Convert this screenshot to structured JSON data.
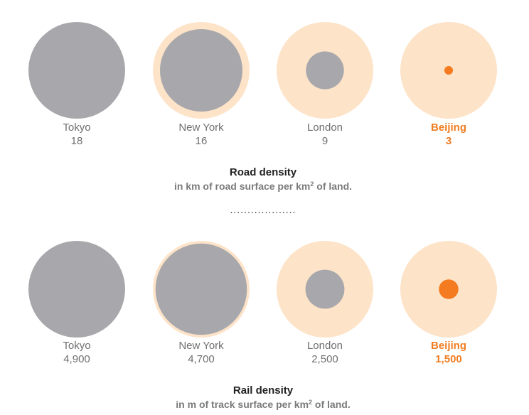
{
  "colors": {
    "outer": "#fde3c8",
    "density": "#a8a8ac",
    "highlight": "#f47b20",
    "label": "#6f6f6f",
    "highlight_label": "#f07d22",
    "title": "#222222",
    "subtitle": "#7a7a7a",
    "divider": "#333333"
  },
  "divider": "...................",
  "chart_data": [
    {
      "type": "proportional-circle",
      "title": "Road density",
      "subtitle_pre": "in km of road surface per km",
      "subtitle_sup": "2",
      "subtitle_post": " of land.",
      "highlight": "Beijing",
      "categories": [
        "Tokyo",
        "New York",
        "London",
        "Beijing"
      ],
      "values": [
        18,
        16,
        9,
        3
      ],
      "value_labels": [
        "18",
        "16",
        "9",
        "3"
      ]
    },
    {
      "type": "proportional-circle",
      "title": "Rail density",
      "subtitle_pre": "in m of track surface per km",
      "subtitle_sup": "2",
      "subtitle_post": " of land.",
      "highlight": "Beijing",
      "categories": [
        "Tokyo",
        "New York",
        "London",
        "Beijing"
      ],
      "values": [
        4900,
        4700,
        2500,
        1500
      ],
      "value_labels": [
        "4,900",
        "4,700",
        "2,500",
        "1,500"
      ]
    }
  ]
}
